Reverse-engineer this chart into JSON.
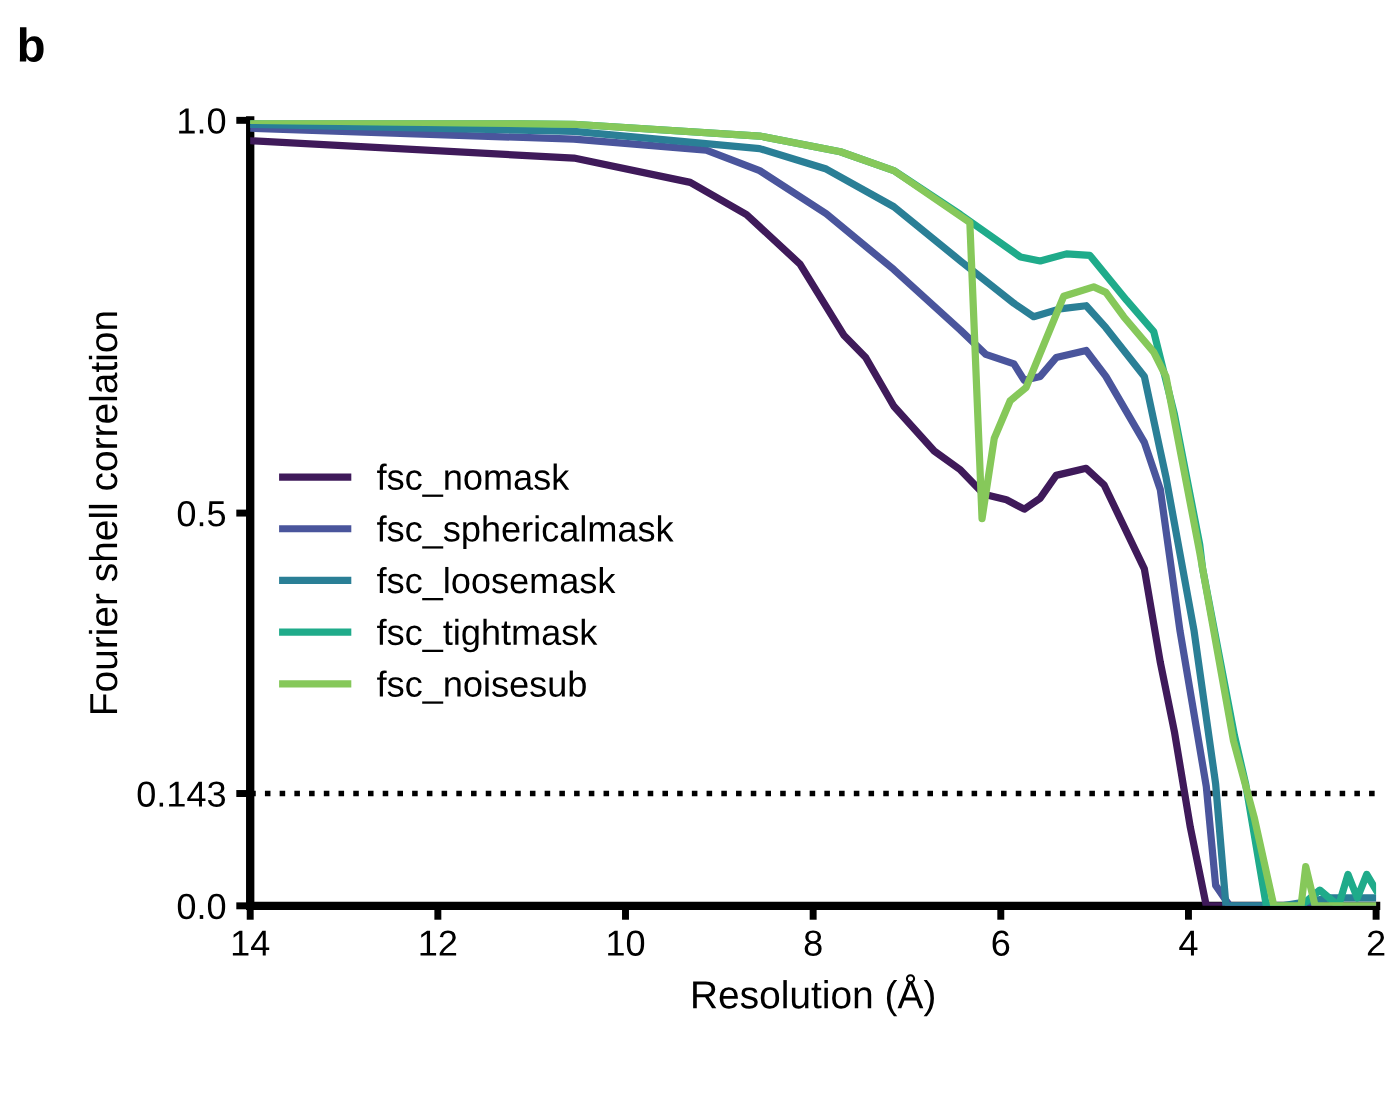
{
  "chart_data": {
    "type": "line",
    "title": "b",
    "xlabel": "Resolution (Å)",
    "ylabel": "Fourier shell correlation",
    "xlim": [
      14,
      2
    ],
    "xticks": [
      14,
      12,
      10,
      8,
      6,
      4,
      2
    ],
    "ylim": [
      0,
      1
    ],
    "yticks": [
      {
        "value": 0,
        "label": "0.0"
      },
      0.143,
      0.5,
      {
        "value": 1,
        "label": "1.0"
      }
    ],
    "ref_lines": [
      {
        "axis": "y",
        "value": 0.143,
        "color": "#000000",
        "line_style": "dotted"
      }
    ],
    "legend": "center left",
    "grid": false,
    "marker": "none",
    "line_style": "solid",
    "series": [
      {
        "name": "fsc_nomask",
        "color": "#3f1a5a",
        "x": [
          14,
          10.55,
          9.31,
          8.71,
          8.14,
          7.67,
          7.44,
          7.14,
          6.71,
          6.43,
          6.18,
          5.94,
          5.75,
          5.58,
          5.41,
          5.09,
          4.9,
          4.47,
          4.3,
          4.15,
          3.98,
          3.81,
          3.5,
          3.0,
          2.5,
          2.0
        ],
        "values": [
          0.974,
          0.952,
          0.921,
          0.88,
          0.817,
          0.726,
          0.698,
          0.636,
          0.579,
          0.555,
          0.524,
          0.517,
          0.505,
          0.519,
          0.548,
          0.557,
          0.536,
          0.429,
          0.31,
          0.222,
          0.1,
          0.0,
          0.0,
          0.0,
          0.0,
          0.0
        ]
      },
      {
        "name": "fsc_sphericalmask",
        "color": "#4a559c",
        "x": [
          14,
          10.55,
          9.14,
          8.57,
          7.86,
          7.14,
          6.43,
          6.16,
          5.86,
          5.75,
          5.58,
          5.41,
          5.09,
          4.88,
          4.47,
          4.3,
          4.09,
          3.81,
          3.71,
          3.56,
          3.0,
          2.5,
          2.0
        ],
        "values": [
          0.99,
          0.976,
          0.962,
          0.936,
          0.881,
          0.81,
          0.733,
          0.702,
          0.69,
          0.669,
          0.674,
          0.698,
          0.707,
          0.674,
          0.59,
          0.53,
          0.35,
          0.152,
          0.026,
          0.0,
          0.0,
          0.0,
          0.0
        ]
      },
      {
        "name": "fsc_loosemask",
        "color": "#2a7f96",
        "x": [
          14,
          10.55,
          8.57,
          7.86,
          7.14,
          6.43,
          5.86,
          5.65,
          5.37,
          5.09,
          4.88,
          4.47,
          4.3,
          4.24,
          3.94,
          3.71,
          3.6,
          3.0,
          2.5,
          2.0
        ],
        "values": [
          0.995,
          0.986,
          0.964,
          0.938,
          0.89,
          0.821,
          0.767,
          0.75,
          0.76,
          0.764,
          0.736,
          0.674,
          0.579,
          0.546,
          0.35,
          0.155,
          0.0,
          0.0,
          0.01,
          0.01
        ]
      },
      {
        "name": "fsc_tightmask",
        "color": "#1fab8a",
        "x": [
          14,
          10.55,
          8.57,
          7.71,
          7.14,
          6.43,
          5.79,
          5.58,
          5.3,
          5.05,
          4.66,
          4.37,
          4.15,
          3.88,
          3.85,
          3.51,
          3.39,
          3.17,
          2.8,
          2.6,
          2.4,
          2.3,
          2.2,
          2.1,
          2.0
        ],
        "values": [
          1.0,
          0.995,
          0.98,
          0.96,
          0.936,
          0.88,
          0.826,
          0.821,
          0.83,
          0.828,
          0.771,
          0.731,
          0.626,
          0.46,
          0.43,
          0.217,
          0.155,
          0.0,
          0.0,
          0.02,
          0.0,
          0.04,
          0.01,
          0.04,
          0.02
        ]
      },
      {
        "name": "fsc_noisesub",
        "color": "#86c85a",
        "x": [
          14,
          10.55,
          8.57,
          7.71,
          7.14,
          6.33,
          6.2,
          6.07,
          5.9,
          5.73,
          5.33,
          5.01,
          4.88,
          4.69,
          4.37,
          4.24,
          3.88,
          3.52,
          3.3,
          3.09,
          2.8,
          2.75,
          2.65,
          2.5,
          2.2,
          2.0
        ],
        "values": [
          1.0,
          0.995,
          0.98,
          0.96,
          0.936,
          0.87,
          0.493,
          0.595,
          0.643,
          0.66,
          0.776,
          0.788,
          0.781,
          0.75,
          0.705,
          0.674,
          0.45,
          0.21,
          0.113,
          0.0,
          0.0,
          0.05,
          0.0,
          0.0,
          0.0,
          0.0
        ]
      }
    ]
  }
}
